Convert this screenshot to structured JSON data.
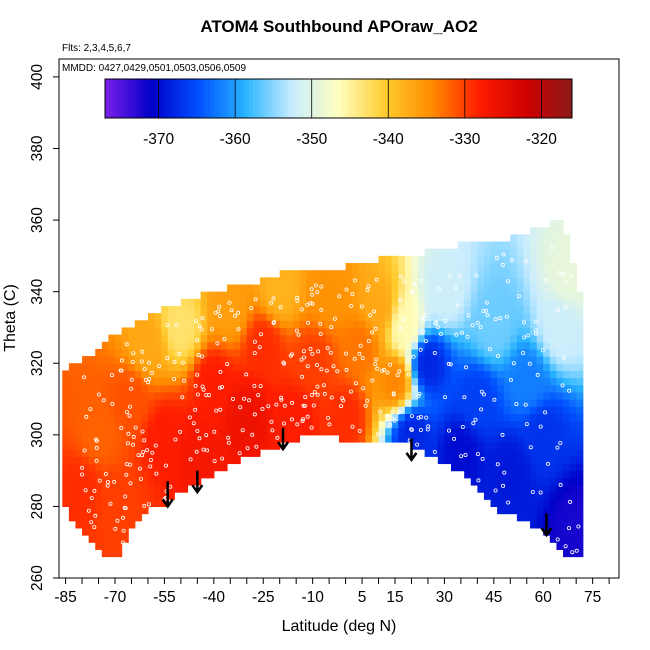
{
  "chart_data": {
    "type": "heatmap",
    "title": "ATOM4 Southbound APOraw_AO2",
    "flights_note": "Flts: 2,3,4,5,6,7",
    "dates_note": "MMDD: 0427,0429,0501,0503,0506,0509",
    "xlabel": "Latitude (deg N)",
    "ylabel": "Theta (C)",
    "xlim": [
      -87,
      83
    ],
    "ylim": [
      260,
      405
    ],
    "x_ticks": [
      -85,
      -70,
      -55,
      -40,
      -25,
      -10,
      5,
      15,
      30,
      45,
      60,
      75
    ],
    "x_tick_labels": [
      "-85",
      "-70",
      "-55",
      "-40",
      "-25",
      "-10",
      "5",
      "15",
      "30",
      "45",
      "60",
      "75"
    ],
    "x_minor_step": 5,
    "y_ticks": [
      260,
      280,
      300,
      320,
      340,
      360,
      380,
      400
    ],
    "y_tick_labels": [
      "260",
      "280",
      "300",
      "320",
      "340",
      "360",
      "380",
      "400"
    ],
    "colorbar": {
      "min": -377,
      "max": -316,
      "ticks": [
        -370,
        -360,
        -350,
        -340,
        -330,
        -320
      ],
      "tick_labels": [
        "-370",
        "-360",
        "-350",
        "-340",
        "-330",
        "-320"
      ],
      "colors": [
        "#7a1fe8",
        "#0000c8",
        "#0050ff",
        "#28b4ff",
        "#c8ecff",
        "#ffffc0",
        "#ffcc30",
        "#ff8c00",
        "#ff1e00",
        "#d00000",
        "#8a1a1a"
      ]
    },
    "field_lower_boundary": [
      [
        -72,
        265
      ],
      [
        -68,
        266
      ],
      [
        -66,
        274
      ],
      [
        -62,
        278
      ],
      [
        -55,
        281
      ],
      [
        -50,
        284
      ],
      [
        -45,
        286
      ],
      [
        -38,
        290
      ],
      [
        -30,
        294
      ],
      [
        -20,
        297
      ],
      [
        -15,
        299
      ],
      [
        -10,
        301
      ],
      [
        -2,
        299
      ],
      [
        5,
        299
      ],
      [
        10,
        299
      ],
      [
        15,
        299
      ],
      [
        22,
        296
      ],
      [
        30,
        292
      ],
      [
        37,
        288
      ],
      [
        42,
        283
      ],
      [
        46,
        278
      ],
      [
        50,
        278
      ],
      [
        55,
        276
      ],
      [
        62,
        272
      ],
      [
        68,
        266
      ],
      [
        72,
        265
      ]
    ],
    "field_upper_boundary": [
      [
        -85,
        318
      ],
      [
        -78,
        322
      ],
      [
        -70,
        328
      ],
      [
        -60,
        333
      ],
      [
        -50,
        337
      ],
      [
        -40,
        340
      ],
      [
        -30,
        342
      ],
      [
        -20,
        345
      ],
      [
        -10,
        346
      ],
      [
        0,
        347
      ],
      [
        10,
        349
      ],
      [
        20,
        350
      ],
      [
        30,
        352
      ],
      [
        40,
        354
      ],
      [
        50,
        355
      ],
      [
        60,
        358
      ],
      [
        66,
        360
      ],
      [
        68,
        352
      ],
      [
        72,
        335
      ],
      [
        72,
        305
      ]
    ],
    "field_left_boundary": [
      [
        -72,
        265
      ],
      [
        -78,
        270
      ],
      [
        -84,
        277
      ],
      [
        -86,
        285
      ],
      [
        -86,
        300
      ],
      [
        -85,
        318
      ]
    ],
    "field_values": [
      {
        "lat": -80,
        "theta": 285,
        "value": -329
      },
      {
        "lat": -75,
        "theta": 300,
        "value": -332
      },
      {
        "lat": -70,
        "theta": 280,
        "value": -330
      },
      {
        "lat": -65,
        "theta": 310,
        "value": -331
      },
      {
        "lat": -60,
        "theta": 325,
        "value": -337
      },
      {
        "lat": -55,
        "theta": 300,
        "value": -328
      },
      {
        "lat": -50,
        "theta": 330,
        "value": -343
      },
      {
        "lat": -45,
        "theta": 295,
        "value": -327
      },
      {
        "lat": -40,
        "theta": 315,
        "value": -328
      },
      {
        "lat": -35,
        "theta": 335,
        "value": -336
      },
      {
        "lat": -30,
        "theta": 305,
        "value": -326
      },
      {
        "lat": -25,
        "theta": 325,
        "value": -329
      },
      {
        "lat": -20,
        "theta": 340,
        "value": -338
      },
      {
        "lat": -15,
        "theta": 305,
        "value": -328
      },
      {
        "lat": -10,
        "theta": 320,
        "value": -330
      },
      {
        "lat": -5,
        "theta": 340,
        "value": -335
      },
      {
        "lat": 0,
        "theta": 305,
        "value": -329
      },
      {
        "lat": 5,
        "theta": 325,
        "value": -333
      },
      {
        "lat": 10,
        "theta": 335,
        "value": -337
      },
      {
        "lat": 15,
        "theta": 315,
        "value": -334
      },
      {
        "lat": 18,
        "theta": 330,
        "value": -346
      },
      {
        "lat": 20,
        "theta": 300,
        "value": -368
      },
      {
        "lat": 25,
        "theta": 320,
        "value": -368
      },
      {
        "lat": 30,
        "theta": 340,
        "value": -352
      },
      {
        "lat": 35,
        "theta": 295,
        "value": -370
      },
      {
        "lat": 40,
        "theta": 310,
        "value": -366
      },
      {
        "lat": 45,
        "theta": 330,
        "value": -356
      },
      {
        "lat": 50,
        "theta": 290,
        "value": -369
      },
      {
        "lat": 55,
        "theta": 315,
        "value": -362
      },
      {
        "lat": 60,
        "theta": 300,
        "value": -367
      },
      {
        "lat": 65,
        "theta": 330,
        "value": -352
      },
      {
        "lat": 68,
        "theta": 345,
        "value": -349
      },
      {
        "lat": 70,
        "theta": 275,
        "value": -372
      }
    ],
    "arrows": [
      {
        "lat": -54,
        "theta_tip": 280,
        "theta_tail": 287
      },
      {
        "lat": -45,
        "theta_tip": 284,
        "theta_tail": 290
      },
      {
        "lat": -19,
        "theta_tip": 296,
        "theta_tail": 302
      },
      {
        "lat": 20,
        "theta_tip": 293,
        "theta_tail": 299
      },
      {
        "lat": 61,
        "theta_tip": 272,
        "theta_tail": 278
      }
    ]
  }
}
